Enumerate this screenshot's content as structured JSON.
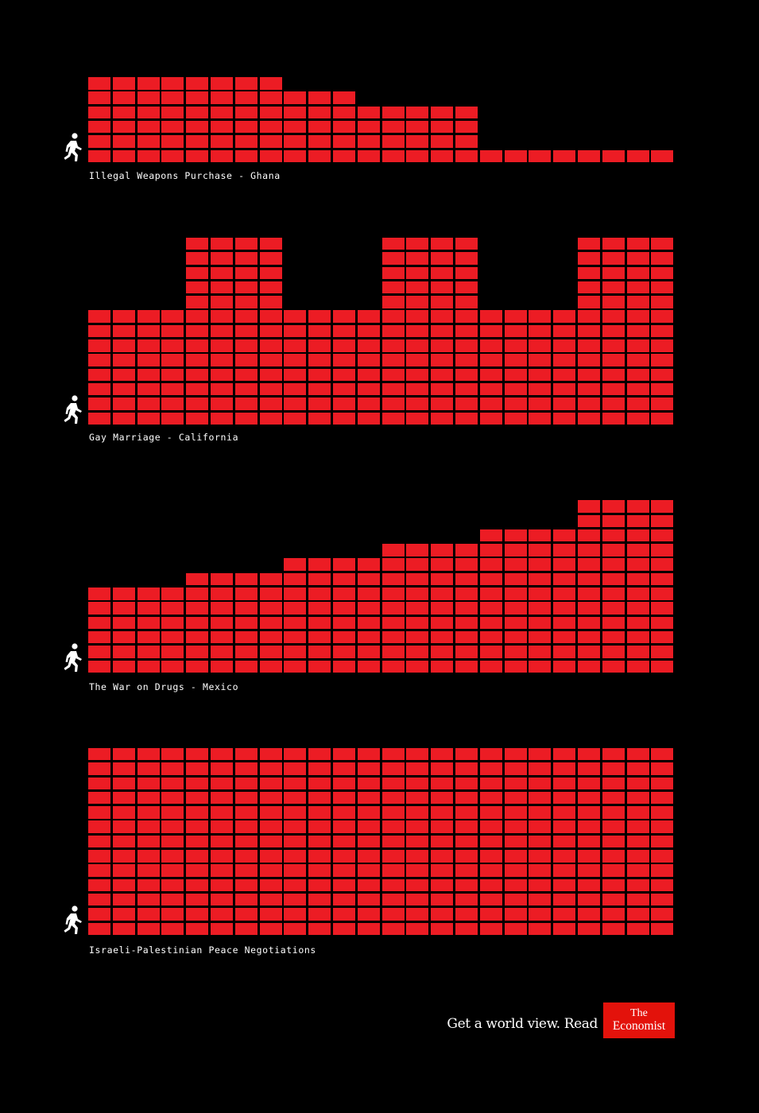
{
  "panels": [
    {
      "caption": "Illegal Weapons Purchase - Ghana",
      "column_heights": [
        6,
        6,
        6,
        6,
        6,
        6,
        6,
        6,
        5,
        5,
        5,
        4,
        4,
        4,
        4,
        4,
        1,
        1,
        1,
        1,
        1,
        1,
        1,
        1
      ]
    },
    {
      "caption": "Gay Marriage - California",
      "column_heights": [
        8,
        8,
        8,
        8,
        13,
        13,
        13,
        13,
        8,
        8,
        8,
        8,
        13,
        13,
        13,
        13,
        8,
        8,
        8,
        8,
        13,
        13,
        13,
        13
      ]
    },
    {
      "caption": "The War on Drugs - Mexico",
      "column_heights": [
        6,
        6,
        6,
        6,
        7,
        7,
        7,
        7,
        8,
        8,
        8,
        8,
        9,
        9,
        9,
        9,
        10,
        10,
        10,
        10,
        12,
        12,
        12,
        12
      ]
    },
    {
      "caption": "Israeli-Palestinian Peace Negotiations",
      "column_heights": [
        13,
        13,
        13,
        13,
        13,
        13,
        13,
        13,
        13,
        13,
        13,
        13,
        13,
        13,
        13,
        13,
        13,
        13,
        13,
        13,
        13,
        13,
        13,
        13
      ]
    }
  ],
  "footer": {
    "tagline": "Get a world view. Read",
    "logo_line1": "The",
    "logo_line2": "Economist"
  },
  "colors": {
    "brick": "#ec1c24",
    "logo": "#e3120b",
    "background": "#000000",
    "text": "#ffffff"
  },
  "icons": {
    "runner": "running-person-icon"
  }
}
